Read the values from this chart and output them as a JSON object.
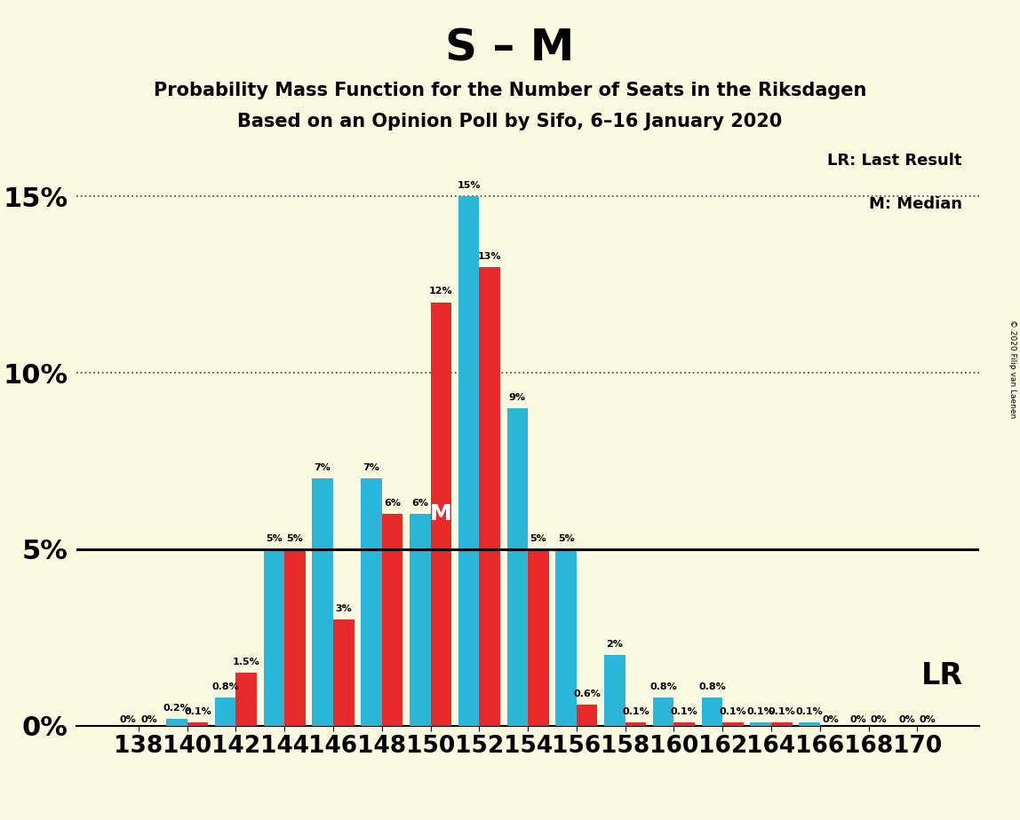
{
  "title": "S – M",
  "subtitle1": "Probability Mass Function for the Number of Seats in the Riksdagen",
  "subtitle2": "Based on an Opinion Poll by Sifo, 6–16 January 2020",
  "copyright": "© 2020 Filip van Laenen",
  "seats": [
    138,
    140,
    142,
    144,
    146,
    148,
    150,
    152,
    154,
    156,
    158,
    160,
    162,
    164,
    166,
    168,
    170
  ],
  "red_values": [
    0.0,
    0.1,
    1.5,
    5.0,
    3.0,
    6.0,
    12.0,
    13.0,
    5.0,
    0.6,
    0.1,
    0.1,
    0.1,
    0.1,
    0.0,
    0.0,
    0.0
  ],
  "cyan_values": [
    0.0,
    0.2,
    0.8,
    5.0,
    7.0,
    7.0,
    6.0,
    15.0,
    9.0,
    5.0,
    2.0,
    0.8,
    0.8,
    0.1,
    0.1,
    0.0,
    0.0
  ],
  "red_color": "#E8292A",
  "cyan_color": "#29B6D8",
  "background_color": "#FAFAE0",
  "median_seat": 150,
  "lr_value": 5.0,
  "ylim_max": 16.5,
  "ytick_vals": [
    0,
    5,
    10,
    15
  ],
  "legend_lr": "LR: Last Result",
  "legend_m": "M: Median",
  "lr_label": "LR",
  "bar_width": 0.43
}
